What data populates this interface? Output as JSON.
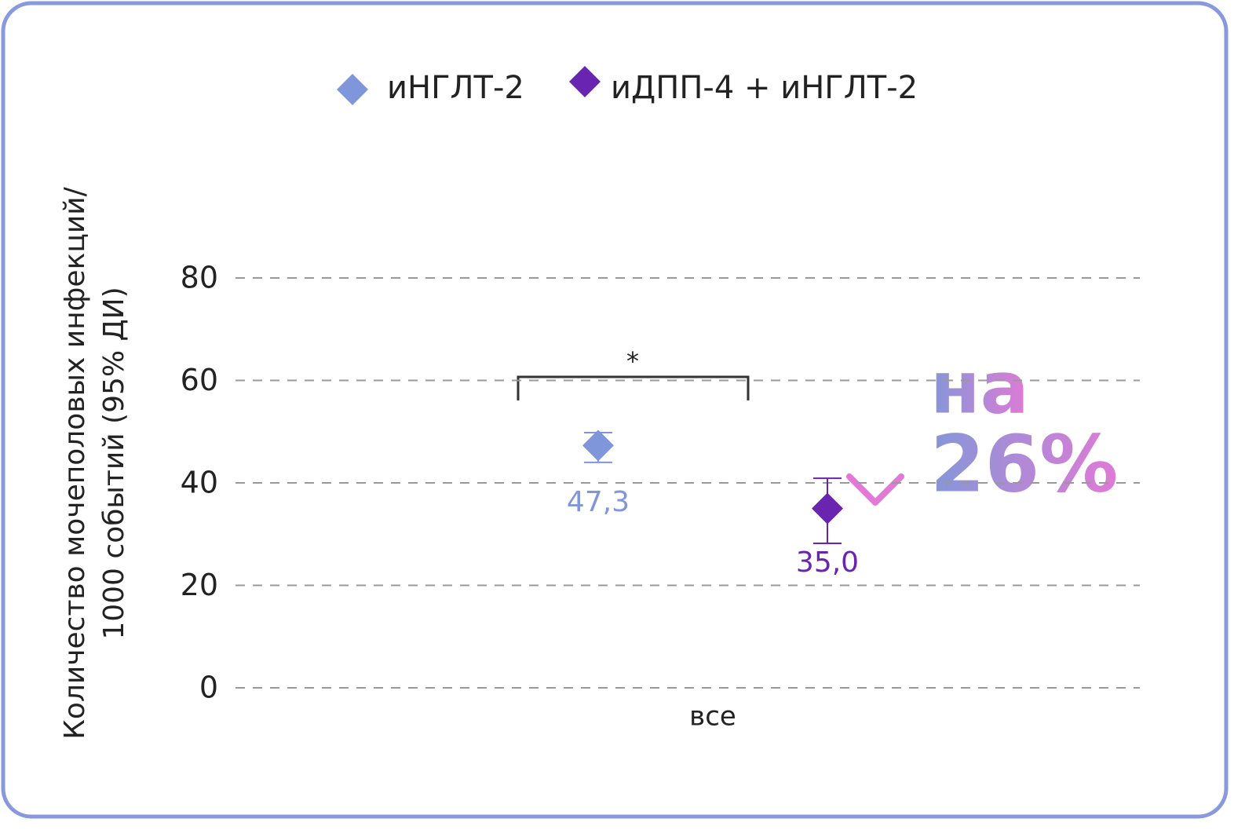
{
  "chart_data": {
    "type": "errorbar",
    "ylabel": [
      "Количество мочеполовых инфекций/",
      "1000 событий (95% ДИ)"
    ],
    "categories": [
      "все"
    ],
    "series": [
      {
        "name": "иНГЛТ-2",
        "color": "#8096da",
        "values": [
          47.3
        ],
        "value_labels": [
          "47,3"
        ],
        "ci_low": [
          44.0
        ],
        "ci_high": [
          49.8
        ]
      },
      {
        "name": "иДПП-4 + иНГЛТ-2",
        "color": "#6a25b0",
        "values": [
          35.0
        ],
        "value_labels": [
          "35,0"
        ],
        "ci_low": [
          28.2
        ],
        "ci_high": [
          40.9
        ]
      }
    ],
    "ylim": [
      0,
      80
    ],
    "yticks": [
      0,
      20,
      40,
      60,
      80
    ],
    "grid": true,
    "significance": "*",
    "annotation": [
      "на",
      "26%"
    ]
  }
}
